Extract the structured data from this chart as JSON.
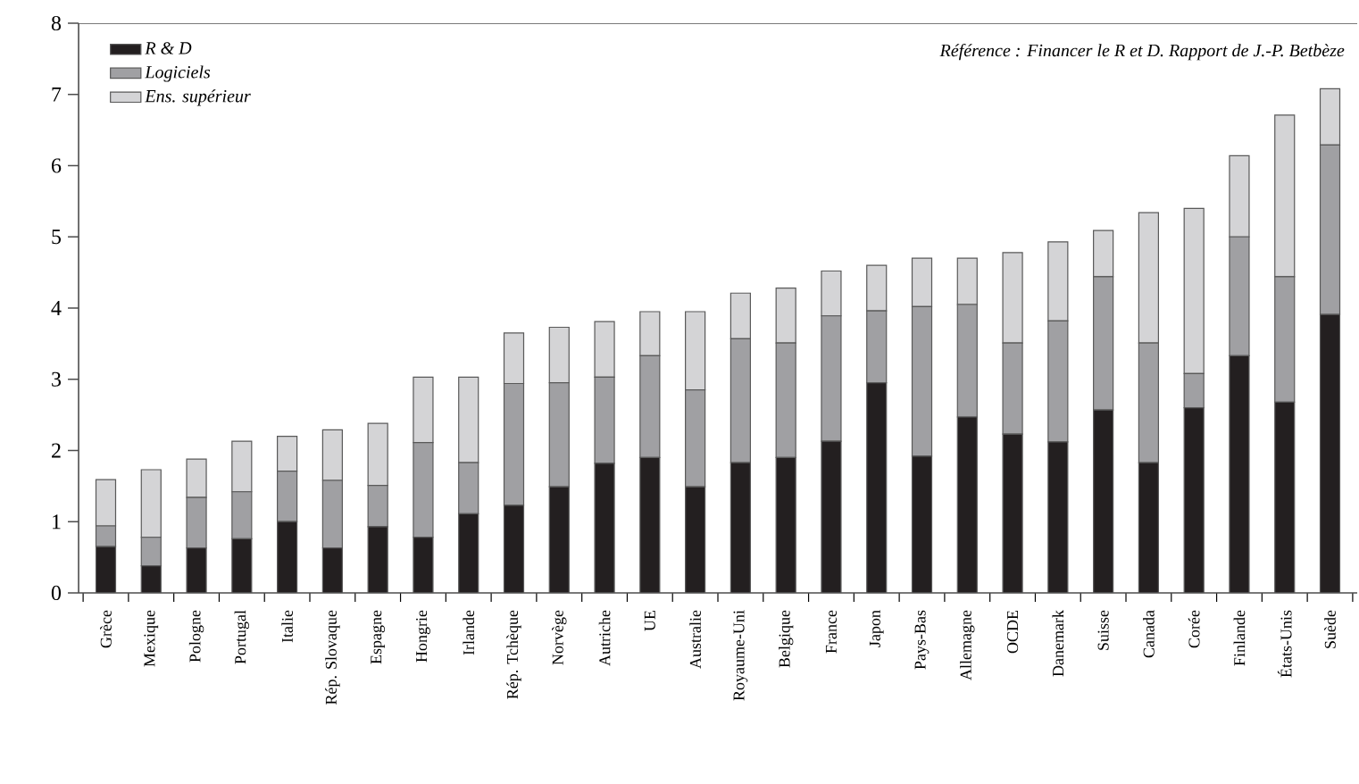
{
  "chart_data": {
    "type": "bar",
    "stacked": true,
    "legend": "top left",
    "annotations": [
      "Référence : Financer le R et D. Rapport de J.-P. Betbèze"
    ],
    "categories": [
      "Grèce",
      "Mexique",
      "Pologne",
      "Portugal",
      "Italie",
      "Rép. Slovaque",
      "Espagne",
      "Hongrie",
      "Irlande",
      "Rép. Tchèque",
      "Norvège",
      "Autriche",
      "UE",
      "Australie",
      "Royaume-Uni",
      "Belgique",
      "France",
      "Japon",
      "Pays-Bas",
      "Allemagne",
      "OCDE",
      "Danemark",
      "Suisse",
      "Canada",
      "Corée",
      "Finlande",
      "États-Unis",
      "Suède"
    ],
    "ylim": [
      0,
      8
    ],
    "yticks": [
      0,
      1,
      2,
      3,
      4,
      5,
      6,
      7,
      8
    ],
    "series": [
      {
        "name": "R & D",
        "color": "#231f20",
        "values": [
          0.65,
          0.38,
          0.63,
          0.76,
          1.0,
          0.63,
          0.93,
          0.78,
          1.11,
          1.23,
          1.49,
          1.82,
          1.9,
          1.49,
          1.83,
          1.9,
          2.13,
          2.95,
          1.92,
          2.47,
          2.23,
          2.12,
          2.57,
          1.83,
          2.6,
          3.33,
          2.68,
          3.91
        ]
      },
      {
        "name": "Logiciels",
        "color": "#a0a0a3",
        "values": [
          0.29,
          0.4,
          0.71,
          0.66,
          0.71,
          0.95,
          0.58,
          1.33,
          0.72,
          1.71,
          1.46,
          1.21,
          1.43,
          1.36,
          1.74,
          1.61,
          1.76,
          1.01,
          2.1,
          1.58,
          1.28,
          1.7,
          1.87,
          1.68,
          0.48,
          1.67,
          1.76,
          2.38
        ]
      },
      {
        "name": "Ens. supérieur",
        "color": "#d4d4d6",
        "values": [
          0.65,
          0.95,
          0.54,
          0.71,
          0.49,
          0.71,
          0.87,
          0.92,
          1.2,
          0.71,
          0.78,
          0.78,
          0.62,
          1.1,
          0.64,
          0.77,
          0.63,
          0.64,
          0.68,
          0.65,
          1.27,
          1.11,
          0.65,
          1.83,
          2.32,
          1.14,
          2.27,
          0.79
        ]
      }
    ]
  }
}
